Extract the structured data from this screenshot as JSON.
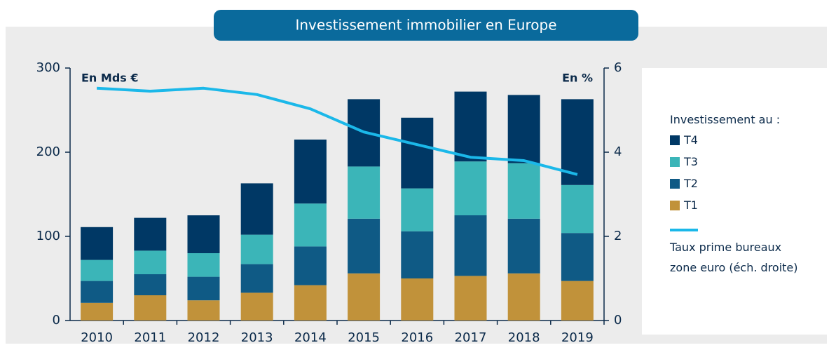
{
  "chart_data": {
    "type": "bar",
    "title": "Investissement immobilier en Europe",
    "y_label": "En Mds €",
    "y2_label": "En %",
    "legend_title": "Investissement au :",
    "categories": [
      "2010",
      "2011",
      "2012",
      "2013",
      "2014",
      "2015",
      "2016",
      "2017",
      "2018",
      "2019"
    ],
    "series": [
      {
        "name": "T1",
        "color": "#c1923a",
        "values": [
          21,
          30,
          24,
          33,
          42,
          56,
          50,
          53,
          56,
          47
        ]
      },
      {
        "name": "T2",
        "color": "#0f5a85",
        "values": [
          26,
          25,
          28,
          34,
          46,
          65,
          56,
          72,
          65,
          57
        ]
      },
      {
        "name": "T3",
        "color": "#3bb5b8",
        "values": [
          25,
          28,
          28,
          35,
          51,
          62,
          51,
          64,
          66,
          57
        ]
      },
      {
        "name": "T4",
        "color": "#003865",
        "values": [
          39,
          39,
          45,
          61,
          76,
          80,
          84,
          83,
          81,
          102
        ]
      },
      {
        "name": "Taux prime bureaux zone euro (éch. droite)",
        "color": "#1bb8e9",
        "type": "line",
        "axis": "y2",
        "values": [
          5.52,
          5.45,
          5.52,
          5.37,
          5.03,
          4.48,
          4.18,
          3.88,
          3.8,
          3.47
        ]
      }
    ],
    "ylim": [
      0,
      300
    ],
    "yticks": [
      0,
      100,
      200,
      300
    ],
    "y2lim": [
      0,
      6
    ],
    "y2ticks": [
      0,
      2,
      4,
      6
    ]
  }
}
